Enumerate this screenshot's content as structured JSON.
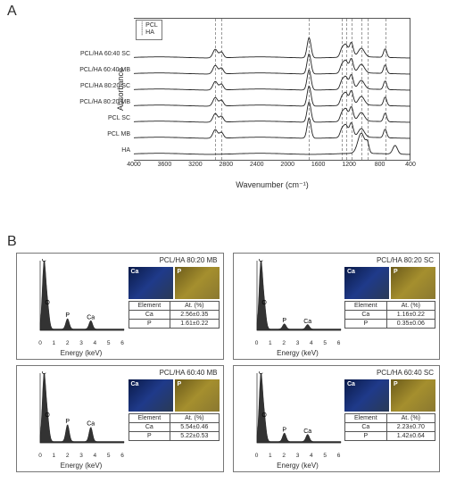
{
  "panels": {
    "A": "A",
    "B": "B"
  },
  "ir": {
    "ylabel": "Absorbance",
    "xlabel": "Wavenumber (cm⁻¹)",
    "legend": [
      "PCL",
      "HA"
    ],
    "xlim": [
      4000,
      400
    ],
    "ticks": [
      4000,
      3600,
      3200,
      2800,
      2400,
      2000,
      1600,
      1200,
      800,
      400
    ],
    "dash_lines": [
      2940,
      2860,
      1720,
      1290,
      1240,
      1170,
      1040,
      960,
      730
    ],
    "traces": [
      "PCL/HA 60:40 SC",
      "PCL/HA 60:40 MB",
      "PCL/HA 80:20 SC",
      "PCL/HA 80:20 MB",
      "PCL SC",
      "PCL MB",
      "HA"
    ],
    "trace_color": "#222222"
  },
  "eds": {
    "x_label": "Energy (keV)",
    "x_ticks": [
      0,
      1,
      2,
      3,
      4,
      5,
      6
    ],
    "table_header": [
      "Element",
      "At. (%)"
    ],
    "img_labels": [
      "Ca",
      "P"
    ],
    "img_bg": [
      "linear-gradient(135deg,#0a1a48,#1f3a8a,#2a3a55)",
      "linear-gradient(135deg,#6b5a1a,#a58f2e,#8a7830)"
    ],
    "peaks": [
      {
        "label": "C",
        "x": 0.28,
        "h": 1.0
      },
      {
        "label": "O",
        "x": 0.53,
        "h": 0.35
      },
      {
        "label": "P",
        "x": 2.0,
        "h": 0.18
      },
      {
        "label": "Ca",
        "x": 3.7,
        "h": 0.14
      }
    ],
    "panels": [
      {
        "title": "PCL/HA 80:20 MB",
        "Ca": "2.56±0.35",
        "P": "1.61±0.22",
        "p_h": 0.16,
        "ca_h": 0.13
      },
      {
        "title": "PCL/HA 80:20 SC",
        "Ca": "1.16±0.22",
        "P": "0.35±0.06",
        "p_h": 0.08,
        "ca_h": 0.07
      },
      {
        "title": "PCL/HA 60:40 MB",
        "Ca": "5.54±0.46",
        "P": "5.22±0.53",
        "p_h": 0.26,
        "ca_h": 0.22
      },
      {
        "title": "PCL/HA 60:40 SC",
        "Ca": "2.23±0.70",
        "P": "1.42±0.64",
        "p_h": 0.13,
        "ca_h": 0.11
      }
    ]
  }
}
